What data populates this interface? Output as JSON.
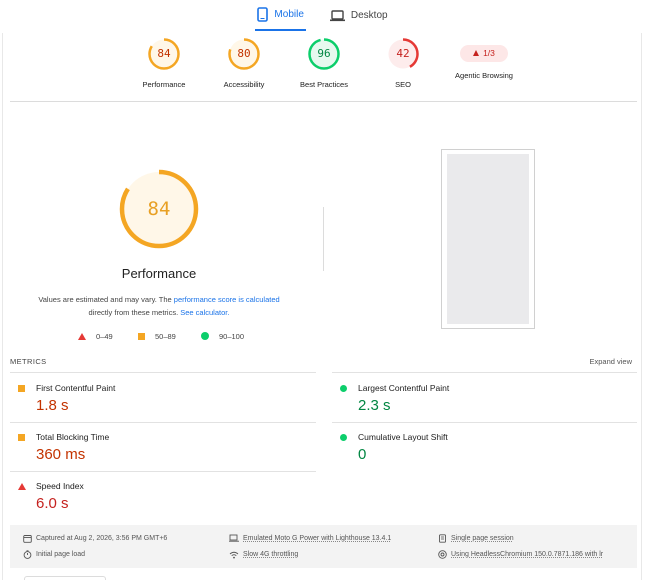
{
  "colors": {
    "accent": "#1a73e8",
    "pass": "#0cce6b",
    "average": "#f4a623",
    "fail": "#e53935"
  },
  "device_tabs": [
    {
      "label": "Mobile",
      "icon": "phone-icon",
      "active": true
    },
    {
      "label": "Desktop",
      "icon": "laptop-icon",
      "active": false
    }
  ],
  "categories": [
    {
      "label": "Performance",
      "score": "84",
      "rating": "average"
    },
    {
      "label": "Accessibility",
      "score": "80",
      "rating": "average"
    },
    {
      "label": "Best Practices",
      "score": "96",
      "rating": "pass"
    },
    {
      "label": "SEO",
      "score": "42",
      "rating": "fail"
    },
    {
      "label": "Agentic Browsing",
      "badge": "1/3",
      "rating": "fail"
    }
  ],
  "performance": {
    "score": "84",
    "title": "Performance",
    "note_prefix": "Values are estimated and may vary. The ",
    "note_link1": "performance score is calculated",
    "note_mid": "directly from these metrics. ",
    "note_link2": "See calculator."
  },
  "legend": [
    {
      "shape": "triangle",
      "range": "0–49"
    },
    {
      "shape": "square",
      "range": "50–89"
    },
    {
      "shape": "circle",
      "range": "90–100"
    }
  ],
  "metrics": {
    "title": "METRICS",
    "expand_label": "Expand view",
    "items": [
      {
        "name": "First Contentful Paint",
        "value": "1.8 s",
        "rating": "average"
      },
      {
        "name": "Largest Contentful Paint",
        "value": "2.3 s",
        "rating": "pass"
      },
      {
        "name": "Total Blocking Time",
        "value": "360 ms",
        "rating": "average"
      },
      {
        "name": "Cumulative Layout Shift",
        "value": "0",
        "rating": "pass"
      },
      {
        "name": "Speed Index",
        "value": "6.0 s",
        "rating": "fail"
      }
    ]
  },
  "run_info": {
    "captured": "Captured at Aug 2, 2026, 3:56 PM GMT+6",
    "page_load": "Initial page load",
    "device": "Emulated Moto G Power with Lighthouse 13.4.1",
    "throttling": "Slow 4G throttling",
    "session": "Single page session",
    "browser": "Using HeadlessChromium 150.0.7871.186 with lr"
  }
}
